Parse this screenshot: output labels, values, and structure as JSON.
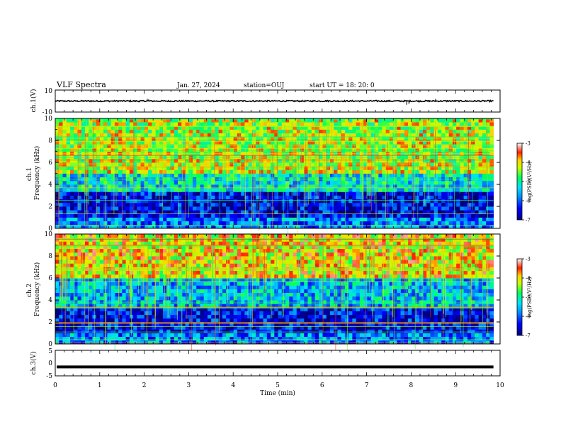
{
  "header": {
    "title": "VLF Spectra",
    "date": "Jan. 27, 2024",
    "station": "station=OUJ",
    "start": "start  UT =  18: 20: 0"
  },
  "colorbar_label": "log(PSD)(V²/Hz)",
  "chart_data": [
    {
      "type": "line",
      "panel": "ch.1 waveform",
      "ylabel": "ch.1(V)",
      "xlim": [
        0,
        10
      ],
      "ylim": [
        -10,
        10
      ],
      "yticks": [
        "10",
        "-10"
      ],
      "baseline": 0,
      "spikes": [
        {
          "x": 2.07,
          "y": 2.0
        },
        {
          "x": 2.1,
          "y": 1.6
        },
        {
          "x": 1.9,
          "y": -1.2
        },
        {
          "x": 7.9,
          "y": -3.4
        },
        {
          "x": 7.95,
          "y": -2.6
        },
        {
          "x": 8.55,
          "y": 2.0
        },
        {
          "x": 6.1,
          "y": 1.0
        }
      ]
    },
    {
      "type": "heatmap",
      "panel": "ch.1 spectrogram",
      "ylabel": "ch.1\nFrequency (kHz)",
      "xlim": [
        0,
        9.85
      ],
      "ylim": [
        0,
        10
      ],
      "yticks": [
        "0",
        "2",
        "4",
        "6",
        "8",
        "10"
      ],
      "colorbar": {
        "range": [
          -7,
          -3
        ],
        "ticks": [
          "-3",
          "-4",
          "-5",
          "-6",
          "-7"
        ],
        "label": "log(PSD)(V²/Hz)"
      },
      "description_bands": [
        {
          "freq_range": [
            5,
            10
          ],
          "level": -4.3
        },
        {
          "freq_range": [
            3.5,
            5
          ],
          "level": -5.3
        },
        {
          "freq_range": [
            1,
            3.5
          ],
          "level": -6.5
        },
        {
          "freq_range": [
            0,
            1
          ],
          "level": -5.8
        }
      ]
    },
    {
      "type": "heatmap",
      "panel": "ch.2 spectrogram",
      "ylabel": "ch.2\nFrequency (kHz)",
      "xlim": [
        0,
        9.85
      ],
      "ylim": [
        0,
        10
      ],
      "yticks": [
        "0",
        "2",
        "4",
        "6",
        "8",
        "10"
      ],
      "colorbar": {
        "range": [
          -7,
          -3
        ],
        "ticks": [
          "-3",
          "-4",
          "-5",
          "-6",
          "-7"
        ],
        "label": "log(PSD)(V²/Hz)"
      },
      "description_bands": [
        {
          "freq_range": [
            6,
            10
          ],
          "level": -4.0
        },
        {
          "freq_range": [
            3.5,
            6
          ],
          "level": -5.5
        },
        {
          "freq_range": [
            1,
            3.5
          ],
          "level": -6.5
        },
        {
          "freq_range": [
            0,
            1
          ],
          "level": -5.8
        }
      ]
    },
    {
      "type": "line",
      "panel": "ch.3 waveform",
      "ylabel": "ch.3(V)",
      "xlim": [
        0,
        10
      ],
      "ylim": [
        -5,
        5
      ],
      "yticks": [
        "5",
        "0",
        "-5"
      ],
      "constant": -1.5
    }
  ],
  "xaxis": {
    "label": "Time (min)",
    "ticks": [
      "0",
      "1",
      "2",
      "3",
      "4",
      "5",
      "6",
      "7",
      "8",
      "9",
      "10"
    ]
  }
}
